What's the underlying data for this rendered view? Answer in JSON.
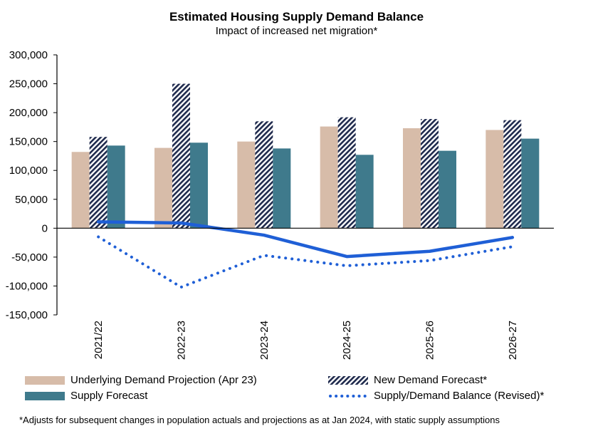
{
  "chart_data": {
    "type": "bar",
    "title": "Estimated Housing Supply Demand Balance",
    "subtitle": "Impact of increased net migration*",
    "categories": [
      "2021/22",
      "2022-23",
      "2023-24",
      "2024-25",
      "2025-26",
      "2026-27"
    ],
    "ylim": [
      -150000,
      300000
    ],
    "yticks": [
      "300,000",
      "250,000",
      "200,000",
      "150,000",
      "100,000",
      "50,000",
      "0",
      "-50,000",
      "-100,000",
      "-150,000"
    ],
    "ytick_values": [
      300000,
      250000,
      200000,
      150000,
      100000,
      50000,
      0,
      -50000,
      -100000,
      -150000
    ],
    "series": [
      {
        "name": "Underlying Demand Projection (Apr 23)",
        "kind": "bar",
        "color": "#d7bca9",
        "values": [
          132000,
          139000,
          150000,
          176000,
          173000,
          170000
        ]
      },
      {
        "name": "New Demand Forecast*",
        "kind": "bar-hatched",
        "color": "#1f2a4d",
        "values": [
          158000,
          250000,
          185000,
          192000,
          189000,
          187000
        ]
      },
      {
        "name": "Supply Forecast",
        "kind": "bar",
        "color": "#3f7a8c",
        "values": [
          143000,
          148000,
          138000,
          127000,
          134000,
          155000
        ]
      },
      {
        "name": "Supply/Demand Balance",
        "kind": "line-solid",
        "color": "#1f5fd6",
        "values": [
          11000,
          9000,
          -12000,
          -49000,
          -40000,
          -16000
        ],
        "in_legend": false
      },
      {
        "name": "Supply/Demand Balance (Revised)*",
        "kind": "line-dotted",
        "color": "#1f5fd6",
        "values": [
          -15000,
          -102000,
          -47000,
          -65000,
          -56000,
          -32000
        ]
      }
    ]
  },
  "legend": {
    "underlying": "Underlying Demand Projection (Apr 23)",
    "new_demand": "New Demand Forecast*",
    "supply": "Supply Forecast",
    "balance_revised": "Supply/Demand Balance (Revised)*"
  },
  "footnote": "*Adjusts for subsequent changes in population actuals and projections as at Jan 2024, with static supply assumptions"
}
